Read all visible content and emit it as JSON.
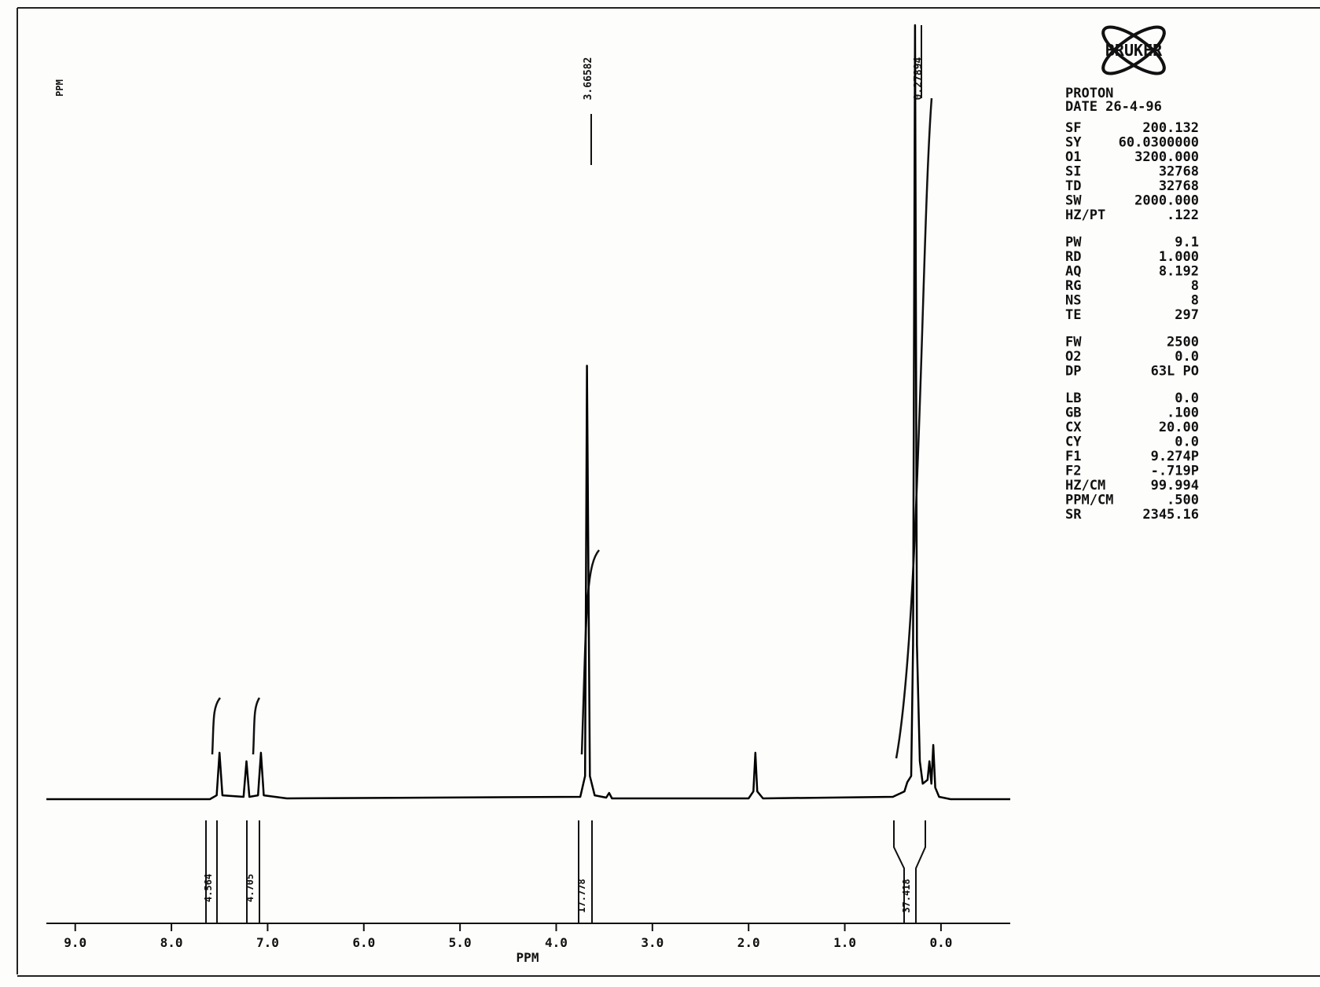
{
  "chart_data": {
    "type": "line",
    "ylabel": "PPM",
    "xlabel": "PPM",
    "xlim": [
      9.3,
      -0.72
    ],
    "ylim": [
      0,
      100
    ],
    "xticks": [
      {
        "value": 9,
        "label": "9.0"
      },
      {
        "value": 8,
        "label": "8.0"
      },
      {
        "value": 7,
        "label": "7.0"
      },
      {
        "value": 6,
        "label": "6.0"
      },
      {
        "value": 5,
        "label": "5.0"
      },
      {
        "value": 4,
        "label": "4.0"
      },
      {
        "value": 3,
        "label": "3.0"
      },
      {
        "value": 2,
        "label": "2.0"
      },
      {
        "value": 1,
        "label": "1.0"
      },
      {
        "value": 0,
        "label": "0.0"
      }
    ],
    "x": [
      9.3,
      7.6,
      7.53,
      7.5,
      7.47,
      7.25,
      7.22,
      7.19,
      7.1,
      7.07,
      7.04,
      6.8,
      3.75,
      3.7,
      3.68,
      3.65,
      3.6,
      3.48,
      3.45,
      3.42,
      2.0,
      1.95,
      1.93,
      1.91,
      1.85,
      0.5,
      0.38,
      0.35,
      0.31,
      0.29,
      0.27,
      0.25,
      0.22,
      0.19,
      0.14,
      0.12,
      0.1,
      0.08,
      0.06,
      0.02,
      -0.1,
      -0.72
    ],
    "series": [
      {
        "color": "#000000",
        "values": [
          0,
          0,
          0.5,
          6,
          0.5,
          0.3,
          4.9,
          0.3,
          0.5,
          6,
          0.5,
          0.1,
          0.3,
          3,
          56,
          3,
          0.5,
          0.2,
          0.8,
          0.1,
          0.1,
          1,
          6,
          1,
          0.1,
          0.3,
          1,
          2.2,
          3,
          20,
          100,
          20,
          4.9,
          2,
          2.5,
          4.9,
          2,
          7,
          1.5,
          0.3,
          0,
          0
        ]
      }
    ],
    "peak_labels": [
      "3.66582",
      "0.27894"
    ],
    "integral_labels": [
      "4.564",
      "4.705",
      "17.778",
      "37.418"
    ]
  },
  "logo": "BRUKER",
  "parameters": {
    "header": [
      "PROTON",
      "DATE 26-4-96"
    ],
    "groups": [
      [
        [
          "SF",
          "200.132"
        ],
        [
          "SY",
          "60.0300000"
        ],
        [
          "O1",
          "3200.000"
        ],
        [
          "SI",
          "32768"
        ],
        [
          "TD",
          "32768"
        ],
        [
          "SW",
          "2000.000"
        ],
        [
          "HZ/PT",
          ".122"
        ]
      ],
      [
        [
          "PW",
          "9.1"
        ],
        [
          "RD",
          "1.000"
        ],
        [
          "AQ",
          "8.192"
        ],
        [
          "RG",
          "8"
        ],
        [
          "NS",
          "8"
        ],
        [
          "TE",
          "297"
        ]
      ],
      [
        [
          "FW",
          "2500"
        ],
        [
          "O2",
          "0.0"
        ],
        [
          "DP",
          "63L PO"
        ]
      ],
      [
        [
          "LB",
          "0.0"
        ],
        [
          "GB",
          ".100"
        ],
        [
          "CX",
          "20.00"
        ],
        [
          "CY",
          "0.0"
        ],
        [
          "F1",
          "9.274P"
        ],
        [
          "F2",
          "-.719P"
        ],
        [
          "HZ/CM",
          "99.994"
        ],
        [
          "PPM/CM",
          ".500"
        ],
        [
          "SR",
          "2345.16"
        ]
      ]
    ]
  }
}
